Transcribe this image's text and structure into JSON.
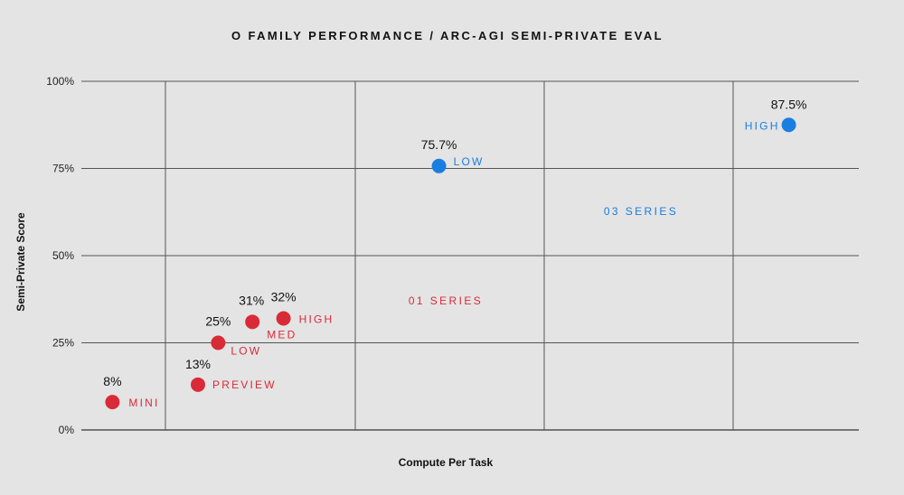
{
  "chart_data": {
    "type": "scatter",
    "title": "O FAMILY PERFORMANCE / ARC-AGI SEMI-PRIVATE EVAL",
    "xlabel": "Compute Per Task",
    "ylabel": "Semi-Private Score",
    "ylim": [
      0,
      100
    ],
    "yticks": [
      "0%",
      "25%",
      "50%",
      "75%",
      "100%"
    ],
    "x_scale": "unlabeled",
    "grid": true,
    "legend": "none",
    "colors": {
      "o1": "#d92b37",
      "o3": "#1a7ee0"
    },
    "series": [
      {
        "name": "01 SERIES",
        "color": "#d92b37",
        "points": [
          {
            "label": "MINI",
            "value_label": "8%",
            "x": 0.2,
            "y": 8
          },
          {
            "label": "PREVIEW",
            "value_label": "13%",
            "x": 0.75,
            "y": 13
          },
          {
            "label": "LOW",
            "value_label": "25%",
            "x": 0.88,
            "y": 25
          },
          {
            "label": "MED",
            "value_label": "31%",
            "x": 1.1,
            "y": 31
          },
          {
            "label": "HIGH",
            "value_label": "32%",
            "x": 1.3,
            "y": 32
          }
        ]
      },
      {
        "name": "03 SERIES",
        "color": "#1a7ee0",
        "points": [
          {
            "label": "LOW",
            "value_label": "75.7%",
            "x": 2.3,
            "y": 75.7
          },
          {
            "label": "HIGH",
            "value_label": "87.5%",
            "x": 4.55,
            "y": 87.5
          }
        ]
      }
    ]
  }
}
